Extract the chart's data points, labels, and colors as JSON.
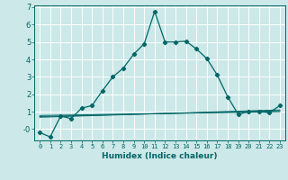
{
  "xlabel": "Humidex (Indice chaleur)",
  "background_color": "#cce8e8",
  "grid_color": "#ffffff",
  "line_color": "#006666",
  "xlim": [
    -0.5,
    23.5
  ],
  "ylim": [
    -0.65,
    7.1
  ],
  "x_ticks": [
    0,
    1,
    2,
    3,
    4,
    5,
    6,
    7,
    8,
    9,
    10,
    11,
    12,
    13,
    14,
    15,
    16,
    17,
    18,
    19,
    20,
    21,
    22,
    23
  ],
  "y_ticks": [
    0,
    1,
    2,
    3,
    4,
    5,
    6,
    7
  ],
  "y_tick_labels": [
    "-0",
    "1",
    "2",
    "3",
    "4",
    "5",
    "6",
    "7"
  ],
  "main_x": [
    0,
    1,
    2,
    3,
    4,
    5,
    6,
    7,
    8,
    9,
    10,
    11,
    12,
    13,
    14,
    15,
    16,
    17,
    18,
    19,
    20,
    21,
    22,
    23
  ],
  "main_y": [
    -0.2,
    -0.45,
    0.75,
    0.6,
    1.2,
    1.35,
    2.2,
    3.0,
    3.5,
    4.3,
    4.9,
    6.75,
    5.0,
    5.0,
    5.05,
    4.6,
    4.05,
    3.1,
    1.85,
    0.85,
    1.0,
    1.0,
    0.95,
    1.35
  ],
  "flat_lines": [
    {
      "x": [
        0,
        23
      ],
      "y0": 0.72,
      "y1": 1.05
    },
    {
      "x": [
        0,
        23
      ],
      "y0": 0.78,
      "y1": 1.0
    },
    {
      "x": [
        0,
        23
      ],
      "y0": 0.68,
      "y1": 1.1
    }
  ]
}
